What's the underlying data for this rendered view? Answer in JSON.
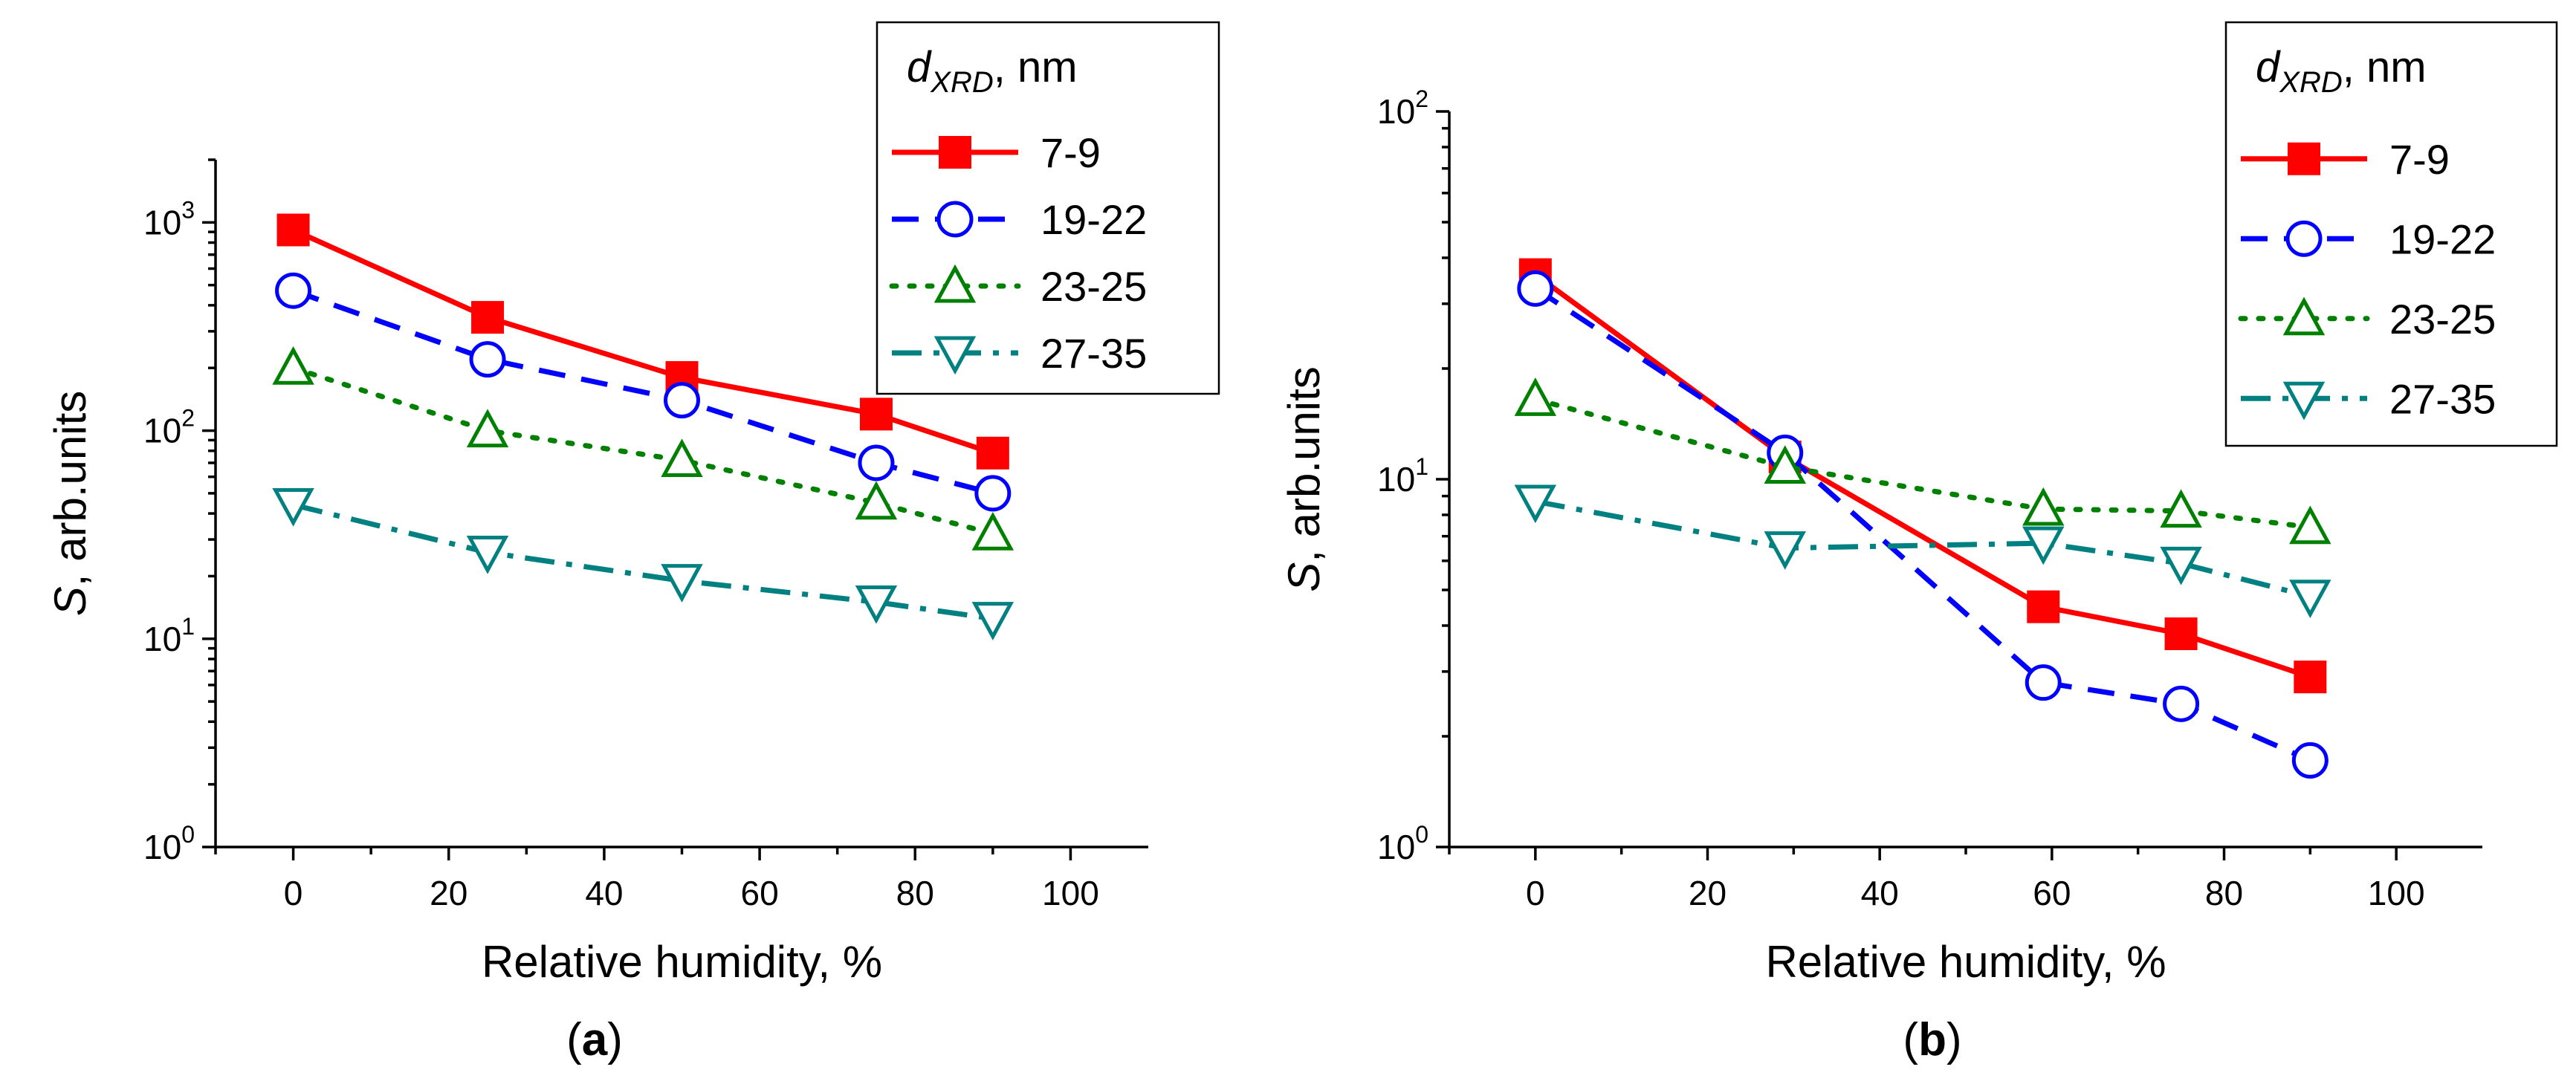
{
  "colors": {
    "7-9": "#ff0000",
    "19-22": "#0000ff",
    "23-25": "#008000",
    "27-35": "#008080"
  },
  "chart_data": [
    {
      "type": "line",
      "panel_label": "a",
      "xlabel": "Relative humidity, %",
      "ylabel_italic": "S",
      "ylabel": ", arb.units",
      "xlim": [
        -10,
        110
      ],
      "ylim": [
        1,
        2000
      ],
      "yscale": "log",
      "xticks": [
        "0",
        "20",
        "40",
        "60",
        "80",
        "100"
      ],
      "yticks": [
        {
          "base": "10",
          "exp": "0"
        },
        {
          "base": "10",
          "exp": "1"
        },
        {
          "base": "10",
          "exp": "2"
        },
        {
          "base": "10",
          "exp": "3"
        }
      ],
      "legend": {
        "title_var": "d",
        "title_sub": "XRD",
        "title_rest": ", nm",
        "position": "top-right"
      },
      "series": [
        {
          "name": "7-9",
          "marker": "square",
          "line": "solid",
          "x": [
            0,
            25,
            50,
            75,
            90
          ],
          "y": [
            920,
            350,
            180,
            120,
            78
          ]
        },
        {
          "name": "19-22",
          "marker": "circle",
          "line": "dashed",
          "x": [
            0,
            25,
            50,
            75,
            90
          ],
          "y": [
            470,
            220,
            140,
            70,
            50
          ]
        },
        {
          "name": "23-25",
          "marker": "triangle-up",
          "line": "dotted",
          "x": [
            0,
            25,
            50,
            75,
            90
          ],
          "y": [
            200,
            100,
            72,
            45,
            32
          ]
        },
        {
          "name": "27-35",
          "marker": "triangle-down",
          "line": "dash-dot",
          "x": [
            0,
            25,
            50,
            75,
            90
          ],
          "y": [
            44,
            26,
            19,
            15,
            12.5
          ]
        }
      ]
    },
    {
      "type": "line",
      "panel_label": "b",
      "xlabel": "Relative humidity, %",
      "ylabel_italic": "S",
      "ylabel": ", arb.units",
      "xlim": [
        -10,
        110
      ],
      "ylim": [
        1,
        100
      ],
      "yscale": "log",
      "xticks": [
        "0",
        "20",
        "40",
        "60",
        "80",
        "100"
      ],
      "yticks": [
        {
          "base": "10",
          "exp": "0"
        },
        {
          "base": "10",
          "exp": "1"
        },
        {
          "base": "10",
          "exp": "2"
        }
      ],
      "legend": {
        "title_var": "d",
        "title_sub": "XRD",
        "title_rest": ", nm",
        "position": "top-right"
      },
      "series": [
        {
          "name": "7-9",
          "marker": "square",
          "line": "solid",
          "x": [
            0,
            29,
            59,
            75,
            90
          ],
          "y": [
            36,
            11.5,
            4.5,
            3.8,
            2.9
          ]
        },
        {
          "name": "19-22",
          "marker": "circle",
          "line": "dashed",
          "x": [
            0,
            29,
            59,
            75,
            90
          ],
          "y": [
            33,
            11.8,
            2.8,
            2.45,
            1.72
          ]
        },
        {
          "name": "23-25",
          "marker": "triangle-up",
          "line": "dotted",
          "x": [
            0,
            29,
            59,
            75,
            90
          ],
          "y": [
            16.5,
            10.8,
            8.3,
            8.2,
            7.4
          ]
        },
        {
          "name": "27-35",
          "marker": "triangle-down",
          "line": "dash-dot",
          "x": [
            0,
            29,
            59,
            75,
            90
          ],
          "y": [
            8.7,
            6.5,
            6.7,
            5.9,
            4.8
          ]
        }
      ]
    }
  ]
}
